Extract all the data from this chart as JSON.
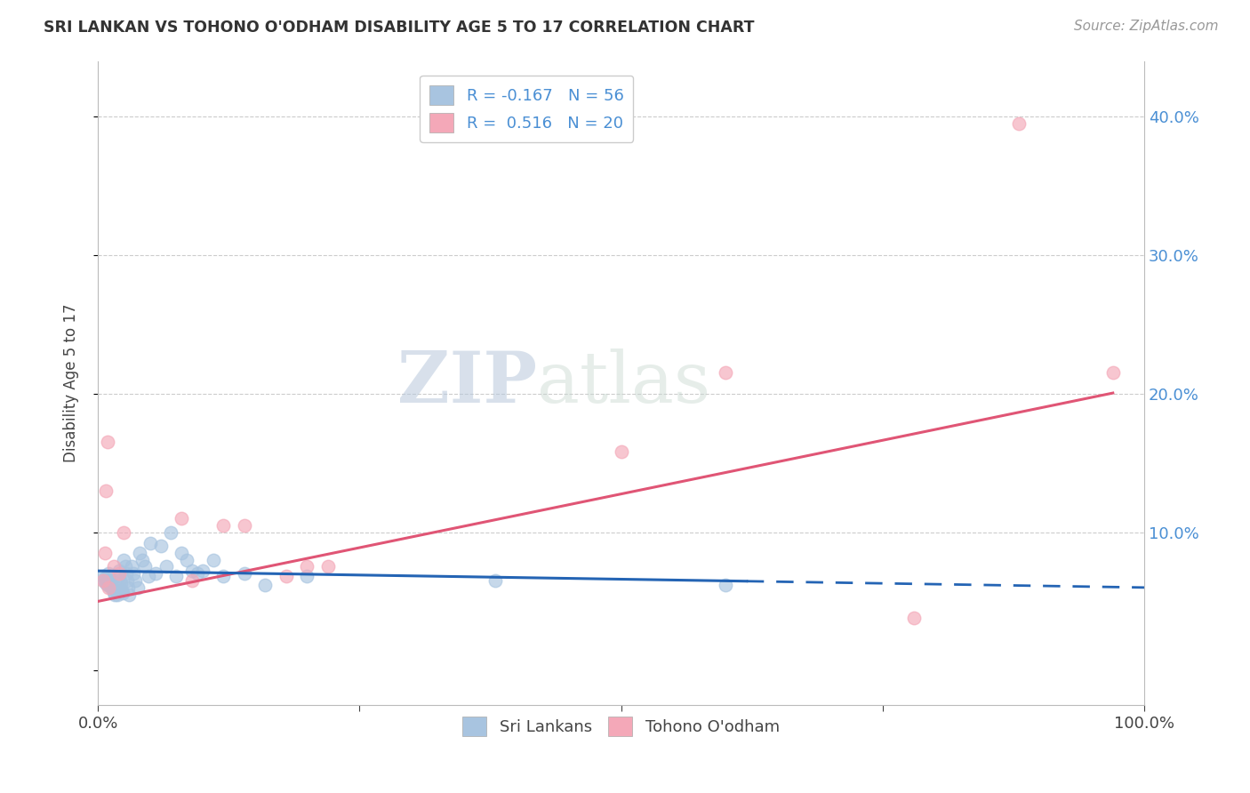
{
  "title": "SRI LANKAN VS TOHONO O'ODHAM DISABILITY AGE 5 TO 17 CORRELATION CHART",
  "source": "Source: ZipAtlas.com",
  "ylabel": "Disability Age 5 to 17",
  "xlim": [
    0,
    1.0
  ],
  "ylim": [
    -0.025,
    0.44
  ],
  "ytick_vals": [
    0.0,
    0.1,
    0.2,
    0.3,
    0.4
  ],
  "ytick_labels_right": [
    "",
    "10.0%",
    "20.0%",
    "30.0%",
    "40.0%"
  ],
  "legend_blue_label": "R = -0.167   N = 56",
  "legend_pink_label": "R =  0.516   N = 20",
  "sri_lankan_color": "#a8c4e0",
  "tohono_color": "#f4a8b8",
  "sri_lankan_line_color": "#2464b4",
  "tohono_line_color": "#e05575",
  "watermark_zip": "ZIP",
  "watermark_atlas": "atlas",
  "sri_lankan_x": [
    0.005,
    0.006,
    0.007,
    0.008,
    0.009,
    0.01,
    0.01,
    0.01,
    0.01,
    0.011,
    0.012,
    0.013,
    0.014,
    0.015,
    0.016,
    0.017,
    0.018,
    0.019,
    0.02,
    0.02,
    0.021,
    0.022,
    0.023,
    0.024,
    0.025,
    0.026,
    0.027,
    0.028,
    0.029,
    0.03,
    0.032,
    0.034,
    0.036,
    0.038,
    0.04,
    0.042,
    0.045,
    0.048,
    0.05,
    0.055,
    0.06,
    0.065,
    0.07,
    0.075,
    0.08,
    0.085,
    0.09,
    0.095,
    0.1,
    0.11,
    0.12,
    0.14,
    0.16,
    0.2,
    0.38,
    0.6
  ],
  "sri_lankan_y": [
    0.068,
    0.065,
    0.067,
    0.063,
    0.062,
    0.07,
    0.068,
    0.065,
    0.063,
    0.066,
    0.064,
    0.06,
    0.059,
    0.057,
    0.055,
    0.06,
    0.058,
    0.055,
    0.072,
    0.068,
    0.065,
    0.063,
    0.058,
    0.056,
    0.08,
    0.075,
    0.07,
    0.065,
    0.06,
    0.055,
    0.075,
    0.07,
    0.065,
    0.06,
    0.085,
    0.08,
    0.075,
    0.068,
    0.092,
    0.07,
    0.09,
    0.075,
    0.1,
    0.068,
    0.085,
    0.08,
    0.072,
    0.07,
    0.072,
    0.08,
    0.068,
    0.07,
    0.062,
    0.068,
    0.065,
    0.062
  ],
  "tohono_x": [
    0.005,
    0.007,
    0.008,
    0.009,
    0.01,
    0.015,
    0.02,
    0.025,
    0.08,
    0.09,
    0.12,
    0.14,
    0.18,
    0.2,
    0.22,
    0.5,
    0.6,
    0.78,
    0.88,
    0.97
  ],
  "tohono_y": [
    0.065,
    0.085,
    0.13,
    0.165,
    0.06,
    0.075,
    0.07,
    0.1,
    0.11,
    0.065,
    0.105,
    0.105,
    0.068,
    0.075,
    0.075,
    0.158,
    0.215,
    0.038,
    0.395,
    0.215
  ],
  "blue_line_intercept": 0.072,
  "blue_line_slope": -0.012,
  "pink_line_intercept": 0.05,
  "pink_line_slope": 0.155
}
